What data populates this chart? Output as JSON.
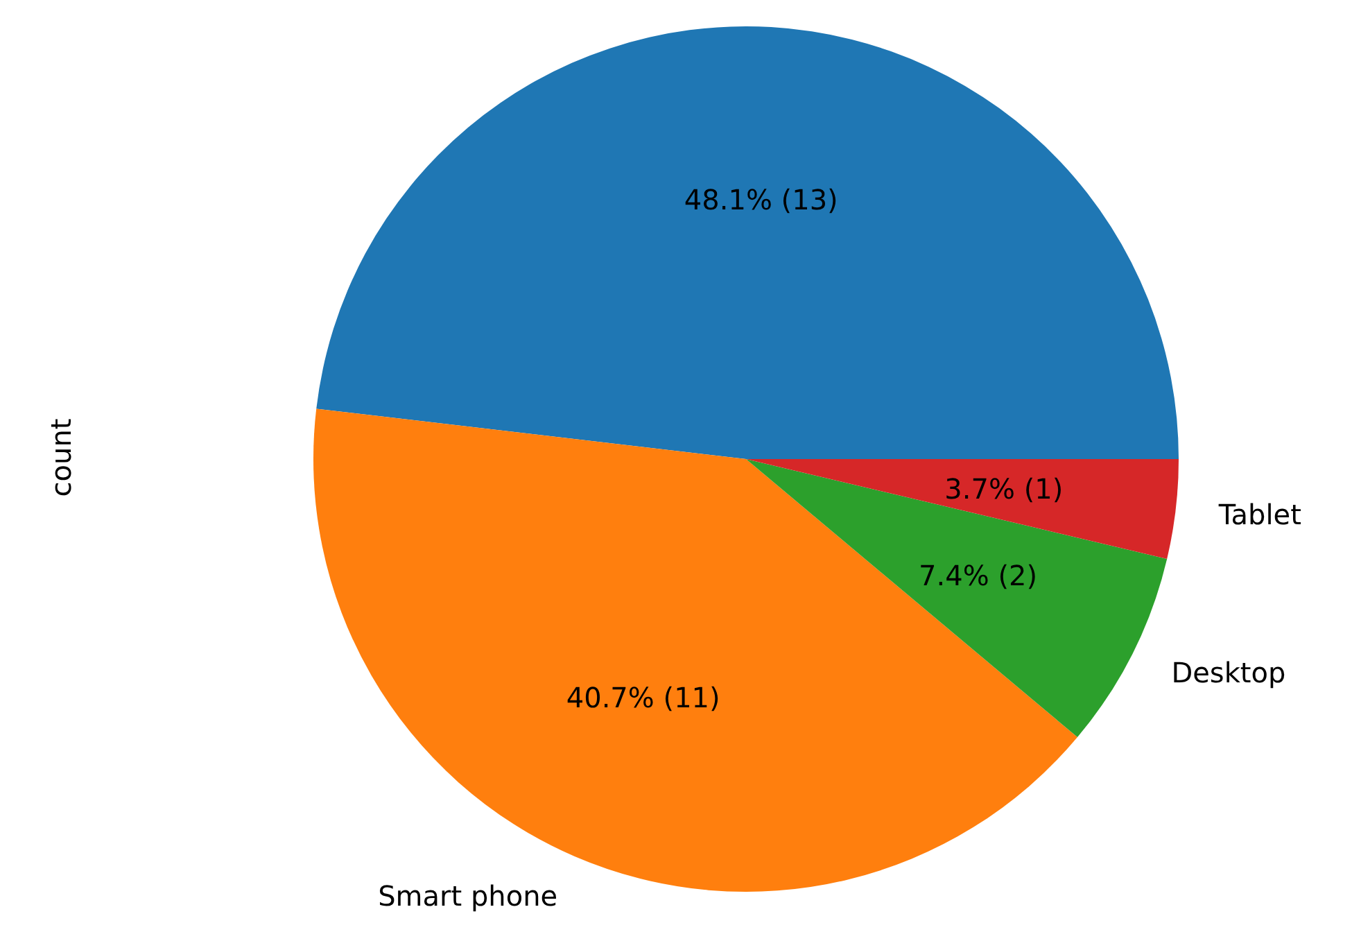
{
  "chart_data": {
    "type": "pie",
    "ylabel": "count",
    "categories": [
      null,
      "Smart phone",
      "Desktop",
      "Tablet"
    ],
    "values": [
      13,
      11,
      2,
      1
    ],
    "value_labels": [
      "48.1%  (13)",
      "40.7%  (11)",
      "7.4%  (2)",
      "3.7%  (1)"
    ],
    "colors": [
      "#1f77b4",
      "#ff7f0e",
      "#2ca02c",
      "#d62728"
    ],
    "legend": false
  }
}
